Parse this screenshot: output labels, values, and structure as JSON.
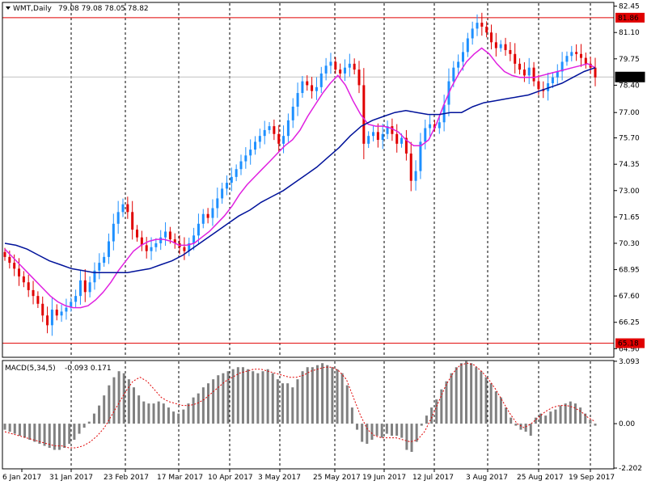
{
  "header": {
    "symbol_label": "WMT,Daily",
    "ohlc_label": "79.08 79.08 78.05 78.82"
  },
  "macd_header": {
    "indicator_label": "MACD(5,34,5)",
    "values_label": "-0.093 0.171"
  },
  "colors": {
    "bull": "#1e90ff",
    "bear": "#e00000",
    "ma_fast": "#e020e0",
    "ma_slow": "#00129a",
    "level": "#e00000",
    "hist": "#808080",
    "signal": "#e00000",
    "grid": "#000000"
  },
  "chart_data": [
    {
      "type": "candlestick",
      "title": "WMT,Daily",
      "ylim": [
        64.5,
        82.6
      ],
      "y_ticks": [
        "82.45",
        "81.10",
        "79.75",
        "78.40",
        "77.00",
        "75.70",
        "74.35",
        "73.00",
        "71.65",
        "70.30",
        "68.95",
        "67.60",
        "66.25",
        "64.90"
      ],
      "x_ticks": [
        "6 Jan 2017",
        "31 Jan 2017",
        "23 Feb 2017",
        "17 Mar 2017",
        "10 Apr 2017",
        "3 May 2017",
        "25 May 2017",
        "19 Jun 2017",
        "12 Jul 2017",
        "3 Aug 2017",
        "25 Aug 2017",
        "19 Sep 2017"
      ],
      "levels": [
        {
          "label": "81.86",
          "value": 81.86
        },
        {
          "label": "65.18",
          "value": 65.18
        }
      ],
      "current_price": {
        "label": "78.82",
        "value": 78.82
      },
      "closes": [
        69.6,
        69.3,
        69.0,
        68.6,
        68.3,
        67.9,
        67.6,
        67.2,
        66.6,
        66.1,
        66.9,
        66.6,
        66.8,
        67.0,
        67.3,
        67.6,
        68.4,
        67.8,
        68.3,
        68.9,
        69.3,
        69.6,
        70.4,
        71.3,
        71.9,
        72.3,
        71.9,
        71.0,
        70.6,
        70.2,
        69.9,
        70.1,
        70.3,
        70.6,
        70.9,
        70.5,
        70.3,
        70.1,
        69.9,
        70.3,
        70.7,
        71.3,
        71.8,
        71.6,
        72.1,
        72.6,
        73.1,
        73.4,
        73.7,
        74.1,
        74.5,
        74.8,
        75.1,
        75.5,
        75.8,
        76.1,
        76.3,
        75.9,
        75.4,
        75.8,
        76.6,
        77.3,
        78.0,
        78.6,
        78.4,
        78.1,
        78.3,
        79.0,
        79.4,
        79.6,
        79.2,
        79.0,
        79.3,
        79.5,
        79.2,
        78.4,
        75.4,
        75.8,
        76.0,
        75.6,
        75.9,
        76.3,
        75.9,
        75.4,
        75.7,
        74.9,
        73.5,
        74.0,
        75.5,
        76.2,
        76.4,
        76.2,
        76.5,
        77.4,
        78.6,
        79.3,
        79.6,
        80.1,
        80.8,
        81.3,
        81.6,
        81.4,
        81.1,
        80.6,
        80.3,
        80.5,
        80.2,
        80.0,
        79.5,
        79.2,
        78.9,
        79.3,
        78.6,
        78.2,
        78.1,
        78.5,
        78.8,
        79.1,
        79.6,
        79.9,
        80.1,
        80.0,
        79.8,
        79.5,
        79.3,
        78.8
      ],
      "series": [
        {
          "name": "",
          "kind": "ma_fast",
          "values": [
            70.0,
            69.6,
            69.2,
            68.8,
            68.4,
            68.0,
            67.6,
            67.3,
            67.1,
            67.0,
            67.0,
            67.1,
            67.4,
            67.8,
            68.3,
            68.9,
            69.4,
            69.9,
            70.2,
            70.4,
            70.5,
            70.5,
            70.4,
            70.2,
            70.2,
            70.3,
            70.6,
            70.9,
            71.3,
            71.7,
            72.2,
            72.8,
            73.3,
            73.7,
            74.1,
            74.5,
            74.9,
            75.3,
            75.6,
            76.1,
            76.8,
            77.4,
            78.0,
            78.5,
            78.9,
            78.4,
            77.6,
            76.9,
            76.4,
            76.3,
            76.3,
            76.2,
            76.0,
            75.6,
            75.3,
            75.3,
            75.6,
            76.4,
            77.4,
            78.3,
            79.0,
            79.6,
            80.0,
            80.3,
            80.0,
            79.5,
            79.1,
            78.9,
            78.8,
            78.8,
            78.8,
            78.9,
            79.0,
            79.1,
            79.2,
            79.3,
            79.4,
            79.5,
            79.3
          ]
        },
        {
          "name": "",
          "kind": "ma_slow",
          "values": [
            70.3,
            70.2,
            70.0,
            69.7,
            69.4,
            69.2,
            69.0,
            68.9,
            68.8,
            68.8,
            68.8,
            68.8,
            68.9,
            69.0,
            69.2,
            69.4,
            69.7,
            70.1,
            70.5,
            70.9,
            71.3,
            71.7,
            72.0,
            72.4,
            72.7,
            73.0,
            73.4,
            73.8,
            74.2,
            74.7,
            75.2,
            75.8,
            76.3,
            76.6,
            76.8,
            77.0,
            77.1,
            77.0,
            76.9,
            76.9,
            77.0,
            77.0,
            77.3,
            77.5,
            77.6,
            77.7,
            77.8,
            77.9,
            78.1,
            78.3,
            78.5,
            78.8,
            79.1,
            79.3
          ]
        }
      ]
    },
    {
      "type": "bar",
      "title": "MACD(5,34,5)",
      "ylim": [
        -2.2,
        3.09
      ],
      "y_ticks": [
        "3.093",
        "0.00",
        "-2.202"
      ],
      "histogram": [
        -0.3,
        -0.4,
        -0.5,
        -0.6,
        -0.7,
        -0.8,
        -0.9,
        -1.0,
        -1.1,
        -1.2,
        -1.3,
        -1.3,
        -1.2,
        -1.0,
        -0.8,
        -0.5,
        -0.2,
        0.1,
        0.5,
        0.9,
        1.4,
        1.9,
        2.3,
        2.6,
        2.5,
        2.2,
        1.8,
        1.4,
        1.1,
        1.0,
        1.0,
        1.1,
        1.0,
        0.8,
        0.6,
        0.5,
        0.7,
        1.0,
        1.3,
        1.5,
        1.8,
        2.0,
        2.2,
        2.4,
        2.5,
        2.6,
        2.7,
        2.8,
        2.8,
        2.7,
        2.6,
        2.5,
        2.6,
        2.7,
        2.5,
        2.2,
        2.0,
        2.0,
        1.8,
        2.2,
        2.6,
        2.8,
        2.8,
        2.9,
        3.0,
        2.9,
        2.8,
        2.7,
        2.5,
        1.9,
        0.8,
        -0.3,
        -0.9,
        -1.0,
        -0.8,
        -0.6,
        -0.7,
        -0.5,
        -0.6,
        -0.6,
        -0.7,
        -1.3,
        -1.4,
        -0.9,
        -0.1,
        0.4,
        0.8,
        1.2,
        1.7,
        2.1,
        2.5,
        2.8,
        3.0,
        3.1,
        3.0,
        2.8,
        2.6,
        2.3,
        2.0,
        1.6,
        1.3,
        0.8,
        0.3,
        -0.1,
        -0.3,
        -0.4,
        -0.6,
        0.3,
        0.5,
        0.4,
        0.6,
        0.7,
        0.9,
        1.0,
        1.1,
        1.0,
        0.8,
        0.5,
        0.2,
        -0.1
      ],
      "signal": [
        -0.4,
        -0.5,
        -0.6,
        -0.7,
        -0.8,
        -0.9,
        -1.0,
        -1.1,
        -1.1,
        -1.2,
        -1.2,
        -1.1,
        -0.9,
        -0.6,
        -0.2,
        0.4,
        1.0,
        1.6,
        2.1,
        2.3,
        2.1,
        1.7,
        1.3,
        1.1,
        1.0,
        0.9,
        0.9,
        1.0,
        1.2,
        1.5,
        1.8,
        2.1,
        2.3,
        2.5,
        2.6,
        2.7,
        2.7,
        2.6,
        2.5,
        2.4,
        2.3,
        2.3,
        2.4,
        2.6,
        2.7,
        2.8,
        2.8,
        2.6,
        2.2,
        1.3,
        0.4,
        -0.3,
        -0.6,
        -0.7,
        -0.7,
        -0.7,
        -0.8,
        -0.9,
        -0.8,
        -0.4,
        0.3,
        1.1,
        1.9,
        2.5,
        2.9,
        3.0,
        2.9,
        2.6,
        2.2,
        1.7,
        1.1,
        0.5,
        0.0,
        -0.2,
        0.0,
        0.3,
        0.6,
        0.8,
        0.9,
        0.9,
        0.8,
        0.6,
        0.3,
        0.1
      ]
    }
  ]
}
